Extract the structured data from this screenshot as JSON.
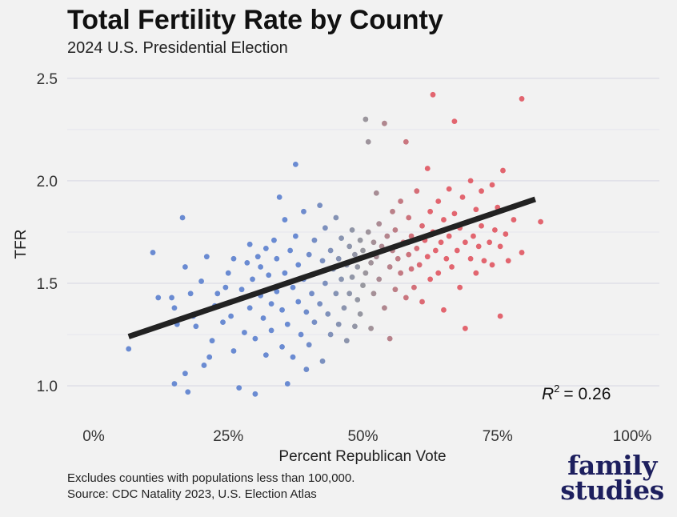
{
  "chart_data": {
    "type": "scatter",
    "title": "Total Fertility Rate by County",
    "subtitle": "2024 U.S. Presidential Election",
    "xlabel": "Percent Republican Vote",
    "ylabel": "TFR",
    "xlim": [
      0,
      100
    ],
    "ylim": [
      0.93,
      2.55
    ],
    "x_ticks": [
      0,
      25,
      50,
      75,
      100
    ],
    "x_tick_labels": [
      "0%",
      "25%",
      "50%",
      "75%",
      "100%"
    ],
    "y_ticks": [
      1.0,
      1.5,
      2.0,
      2.5
    ],
    "y_tick_labels": [
      "1.0",
      "1.5",
      "2.0",
      "2.5"
    ],
    "grid": true,
    "colors": {
      "democratic": "#5b7fce",
      "neutral": "#8e8e96",
      "republican": "#e05560",
      "trendline": "#222222"
    },
    "trendline": {
      "x": [
        6.5,
        82
      ],
      "y": [
        1.24,
        1.91
      ]
    },
    "annotation": {
      "r2_label": "R",
      "r2_exp": "2",
      "r2_value": "= 0.26"
    },
    "points": [
      [
        6.5,
        1.18
      ],
      [
        11,
        1.65
      ],
      [
        12,
        1.43
      ],
      [
        14.5,
        1.43
      ],
      [
        15,
        1.38
      ],
      [
        15,
        1.01
      ],
      [
        15.5,
        1.3
      ],
      [
        16.5,
        1.82
      ],
      [
        17,
        1.58
      ],
      [
        17,
        1.06
      ],
      [
        17.5,
        0.97
      ],
      [
        18,
        1.45
      ],
      [
        18.5,
        1.34
      ],
      [
        19,
        1.29
      ],
      [
        20,
        1.51
      ],
      [
        20.5,
        1.1
      ],
      [
        21,
        1.63
      ],
      [
        21.5,
        1.14
      ],
      [
        22,
        1.22
      ],
      [
        22.5,
        1.39
      ],
      [
        23,
        1.45
      ],
      [
        24,
        1.31
      ],
      [
        24.5,
        1.48
      ],
      [
        25,
        1.55
      ],
      [
        25.5,
        1.34
      ],
      [
        26,
        1.62
      ],
      [
        26,
        1.17
      ],
      [
        27,
        0.99
      ],
      [
        27.5,
        1.47
      ],
      [
        28,
        1.26
      ],
      [
        28.5,
        1.6
      ],
      [
        29,
        1.69
      ],
      [
        29,
        1.38
      ],
      [
        29.5,
        1.52
      ],
      [
        30,
        1.23
      ],
      [
        30,
        0.96
      ],
      [
        30.5,
        1.63
      ],
      [
        31,
        1.44
      ],
      [
        31,
        1.58
      ],
      [
        31.5,
        1.33
      ],
      [
        32,
        1.67
      ],
      [
        32,
        1.15
      ],
      [
        32.5,
        1.54
      ],
      [
        33,
        1.4
      ],
      [
        33,
        1.27
      ],
      [
        33.5,
        1.71
      ],
      [
        34,
        1.46
      ],
      [
        34,
        1.62
      ],
      [
        34.5,
        1.92
      ],
      [
        35,
        1.37
      ],
      [
        35,
        1.19
      ],
      [
        35.5,
        1.81
      ],
      [
        35.5,
        1.55
      ],
      [
        36,
        1.3
      ],
      [
        36,
        1.01
      ],
      [
        36.5,
        1.66
      ],
      [
        37,
        1.48
      ],
      [
        37,
        1.14
      ],
      [
        37.5,
        1.73
      ],
      [
        37.5,
        2.08
      ],
      [
        38,
        1.41
      ],
      [
        38,
        1.59
      ],
      [
        38.5,
        1.25
      ],
      [
        39,
        1.85
      ],
      [
        39,
        1.52
      ],
      [
        39.5,
        1.08
      ],
      [
        39.5,
        1.36
      ],
      [
        40,
        1.64
      ],
      [
        40,
        1.2
      ],
      [
        40.5,
        1.45
      ],
      [
        41,
        1.71
      ],
      [
        41,
        1.31
      ],
      [
        41.5,
        1.55
      ],
      [
        42,
        1.88
      ],
      [
        42,
        1.4
      ],
      [
        42.5,
        1.61
      ],
      [
        42.5,
        1.12
      ],
      [
        43,
        1.5
      ],
      [
        43,
        1.77
      ],
      [
        43.5,
        1.35
      ],
      [
        44,
        1.66
      ],
      [
        44,
        1.25
      ],
      [
        44.5,
        1.57
      ],
      [
        45,
        1.45
      ],
      [
        45,
        1.82
      ],
      [
        45.5,
        1.62
      ],
      [
        45.5,
        1.3
      ],
      [
        46,
        1.52
      ],
      [
        46,
        1.72
      ],
      [
        46.5,
        1.38
      ],
      [
        47,
        1.59
      ],
      [
        47,
        1.22
      ],
      [
        47.5,
        1.68
      ],
      [
        47.5,
        1.45
      ],
      [
        48,
        1.76
      ],
      [
        48,
        1.53
      ],
      [
        48.5,
        1.29
      ],
      [
        48.5,
        1.64
      ],
      [
        49,
        1.42
      ],
      [
        49,
        1.58
      ],
      [
        49.5,
        1.71
      ],
      [
        49.5,
        1.35
      ],
      [
        50,
        1.49
      ],
      [
        50,
        1.66
      ],
      [
        50.5,
        2.3
      ],
      [
        50.5,
        1.55
      ],
      [
        51,
        2.19
      ],
      [
        51,
        1.75
      ],
      [
        51.5,
        1.6
      ],
      [
        51.5,
        1.28
      ],
      [
        52,
        1.7
      ],
      [
        52,
        1.45
      ],
      [
        52.5,
        1.94
      ],
      [
        52.5,
        1.63
      ],
      [
        53,
        1.52
      ],
      [
        53,
        1.79
      ],
      [
        53.5,
        1.68
      ],
      [
        54,
        1.38
      ],
      [
        54,
        2.28
      ],
      [
        54.5,
        1.73
      ],
      [
        55,
        1.58
      ],
      [
        55,
        1.23
      ],
      [
        55.5,
        1.85
      ],
      [
        55.5,
        1.66
      ],
      [
        56,
        1.47
      ],
      [
        56,
        1.76
      ],
      [
        56.5,
        1.62
      ],
      [
        57,
        1.9
      ],
      [
        57,
        1.55
      ],
      [
        57.5,
        1.7
      ],
      [
        58,
        1.43
      ],
      [
        58,
        2.19
      ],
      [
        58.5,
        1.82
      ],
      [
        58.5,
        1.64
      ],
      [
        59,
        1.57
      ],
      [
        59,
        1.73
      ],
      [
        59.5,
        1.48
      ],
      [
        60,
        1.95
      ],
      [
        60,
        1.67
      ],
      [
        60.5,
        1.59
      ],
      [
        61,
        1.78
      ],
      [
        61,
        1.41
      ],
      [
        61.5,
        1.71
      ],
      [
        62,
        2.06
      ],
      [
        62,
        1.63
      ],
      [
        62.5,
        1.85
      ],
      [
        62.5,
        1.52
      ],
      [
        63,
        1.75
      ],
      [
        63,
        2.42
      ],
      [
        63.5,
        1.66
      ],
      [
        64,
        1.9
      ],
      [
        64,
        1.55
      ],
      [
        64.5,
        1.7
      ],
      [
        65,
        1.81
      ],
      [
        65,
        1.37
      ],
      [
        65.5,
        1.62
      ],
      [
        66,
        1.96
      ],
      [
        66,
        1.73
      ],
      [
        66.5,
        1.58
      ],
      [
        67,
        1.84
      ],
      [
        67,
        2.29
      ],
      [
        67.5,
        1.66
      ],
      [
        68,
        1.77
      ],
      [
        68,
        1.48
      ],
      [
        68.5,
        1.92
      ],
      [
        69,
        1.7
      ],
      [
        69,
        1.28
      ],
      [
        69.5,
        1.8
      ],
      [
        70,
        1.62
      ],
      [
        70,
        2.0
      ],
      [
        70.5,
        1.73
      ],
      [
        71,
        1.86
      ],
      [
        71,
        1.55
      ],
      [
        71.5,
        1.68
      ],
      [
        72,
        1.95
      ],
      [
        72,
        1.78
      ],
      [
        72.5,
        1.61
      ],
      [
        73,
        1.83
      ],
      [
        73.5,
        1.7
      ],
      [
        74,
        1.98
      ],
      [
        74,
        1.59
      ],
      [
        74.5,
        1.76
      ],
      [
        75,
        1.87
      ],
      [
        75.5,
        1.68
      ],
      [
        75.5,
        1.34
      ],
      [
        76,
        2.05
      ],
      [
        76.5,
        1.74
      ],
      [
        77,
        1.61
      ],
      [
        78,
        1.81
      ],
      [
        79.5,
        1.65
      ],
      [
        79.5,
        2.4
      ],
      [
        83,
        1.8
      ]
    ]
  },
  "notes": {
    "line1": "Excludes counties with populations less than 100,000.",
    "line2": "Source: CDC Natality 2023, U.S. Election Atlas"
  },
  "logo": {
    "line1": "family",
    "line2": "studies"
  }
}
